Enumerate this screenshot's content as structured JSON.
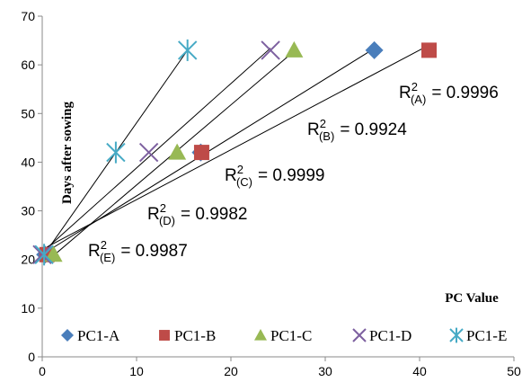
{
  "chart_data": {
    "type": "scatter",
    "xlabel": "PC Value",
    "ylabel": "Days after sowing",
    "xlim": [
      0,
      50
    ],
    "ylim": [
      0,
      70
    ],
    "xticks": [
      "0",
      "10",
      "20",
      "30",
      "40",
      "50"
    ],
    "yticks": [
      "0",
      "10",
      "20",
      "30",
      "40",
      "50",
      "60",
      "70"
    ],
    "grid": false,
    "legend_position": "bottom",
    "series": [
      {
        "name": "PC1-A",
        "color": "#4a7ebb",
        "marker": "diamond",
        "x": [
          0.3,
          16.8,
          35.2
        ],
        "y": [
          21,
          42,
          63
        ],
        "r2": {
          "prefix": "R",
          "sup": "2",
          "sub": "(A)",
          "value": "= 0.9996"
        }
      },
      {
        "name": "PC1-B",
        "color": "#be4b48",
        "marker": "square",
        "x": [
          0.5,
          16.9,
          41.0
        ],
        "y": [
          21,
          42,
          63
        ],
        "r2": {
          "prefix": "R",
          "sup": "2",
          "sub": "(B)",
          "value": "= 0.9924"
        }
      },
      {
        "name": "PC1-C",
        "color": "#98b954",
        "marker": "triangle",
        "x": [
          1.2,
          14.3,
          26.7
        ],
        "y": [
          21,
          42,
          63
        ],
        "r2": {
          "prefix": "R",
          "sup": "2",
          "sub": "(C)",
          "value": "= 0.9999"
        }
      },
      {
        "name": "PC1-D",
        "color": "#7d60a0",
        "marker": "x",
        "x": [
          0.0,
          11.3,
          24.2
        ],
        "y": [
          21,
          42,
          63
        ],
        "r2": {
          "prefix": "R",
          "sup": "2",
          "sub": "(D)",
          "value": "= 0.9982"
        }
      },
      {
        "name": "PC1-E",
        "color": "#46aac5",
        "marker": "star",
        "x": [
          0.2,
          7.8,
          15.4
        ],
        "y": [
          21,
          42,
          63
        ],
        "r2": {
          "prefix": "R",
          "sup": "2",
          "sub": "(E)",
          "value": "= 0.9987"
        }
      }
    ]
  }
}
